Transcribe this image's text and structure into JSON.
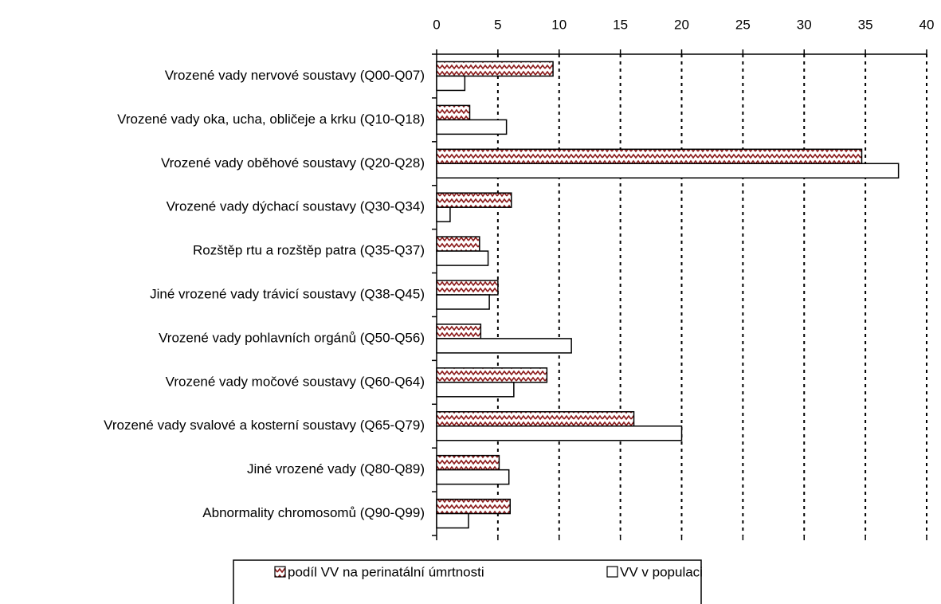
{
  "chart_data": {
    "type": "barh",
    "categories": [
      "Vrozené vady nervové soustavy (Q00-Q07)",
      "Vrozené vady oka, ucha, obličeje a krku (Q10-Q18)",
      "Vrozené vady oběhové soustavy (Q20-Q28)",
      "Vrozené vady dýchací soustavy (Q30-Q34)",
      "Rozštěp rtu a rozštěp patra (Q35-Q37)",
      "Jiné vrozené vady trávicí soustavy (Q38-Q45)",
      "Vrozené vady pohlavních orgánů (Q50-Q56)",
      "Vrozené vady močové soustavy (Q60-Q64)",
      "Vrozené vady svalové a kosterní soustavy (Q65-Q79)",
      "Jiné vrozené vady (Q80-Q89)",
      "Abnormality chromosomů (Q90-Q99)"
    ],
    "series": [
      {
        "name": "podíl VV na perinatální úmrtnosti",
        "color": "#8b1a1a",
        "hatched": true,
        "values": [
          9.5,
          2.7,
          34.7,
          6.1,
          3.5,
          5.0,
          3.6,
          9.0,
          16.1,
          5.1,
          6.0
        ]
      },
      {
        "name": "VV v populaci",
        "color": "#ffffff",
        "hatched": false,
        "values": [
          2.3,
          5.7,
          37.7,
          1.1,
          4.2,
          4.3,
          11.0,
          6.3,
          20.0,
          5.9,
          2.6
        ]
      }
    ],
    "xlim": [
      0,
      40
    ],
    "xticks": [
      0,
      5,
      10,
      15,
      20,
      25,
      30,
      35,
      40
    ],
    "grid": true,
    "legend": "bottom"
  }
}
